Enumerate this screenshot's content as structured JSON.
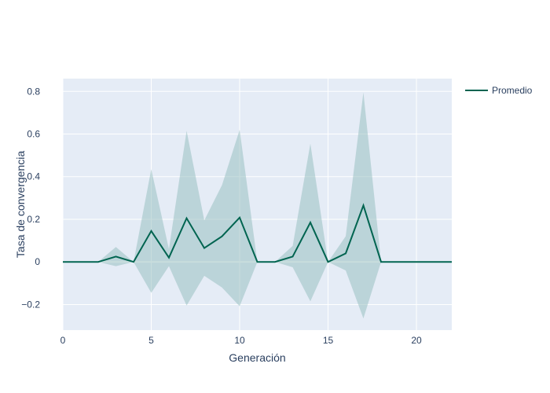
{
  "chart_data": {
    "type": "line",
    "title": "",
    "xlabel": "Generación",
    "ylabel": "Tasa de convergencia",
    "xlim": [
      0,
      22
    ],
    "ylim": [
      -0.32,
      0.86
    ],
    "x_ticks": [
      0,
      5,
      10,
      15,
      20
    ],
    "x_tick_labels": [
      "0",
      "5",
      "10",
      "15",
      "20"
    ],
    "y_ticks": [
      -0.2,
      0,
      0.2,
      0.4,
      0.6,
      0.8
    ],
    "y_tick_labels": [
      "−0.2",
      "0",
      "0.2",
      "0.4",
      "0.6",
      "0.8"
    ],
    "grid": true,
    "legend_position": "top-right",
    "colors": {
      "plot_bg": "#e5ecf6",
      "grid": "#ffffff",
      "line": "#006450",
      "band": "#92bcbc"
    },
    "x": [
      0,
      1,
      2,
      3,
      4,
      5,
      6,
      7,
      8,
      9,
      10,
      11,
      12,
      13,
      14,
      15,
      16,
      17,
      18,
      19,
      20,
      21,
      22
    ],
    "series": [
      {
        "name": "Promedio",
        "values": [
          0,
          0,
          0,
          0.025,
          0,
          0.145,
          0.02,
          0.205,
          0.065,
          0.12,
          0.208,
          0,
          0,
          0.025,
          0.185,
          0,
          0.04,
          0.265,
          0,
          0,
          0,
          0,
          0
        ]
      }
    ],
    "band": {
      "upper": [
        0,
        0,
        0,
        0.07,
        0,
        0.435,
        0.06,
        0.615,
        0.195,
        0.36,
        0.62,
        0,
        0,
        0.075,
        0.555,
        0,
        0.12,
        0.795,
        0,
        0,
        0,
        0,
        0
      ],
      "lower": [
        0,
        0,
        0,
        -0.02,
        0,
        -0.145,
        -0.02,
        -0.205,
        -0.065,
        -0.12,
        -0.208,
        0,
        0,
        -0.025,
        -0.185,
        0,
        -0.04,
        -0.265,
        0,
        0,
        0,
        0,
        0
      ]
    }
  }
}
